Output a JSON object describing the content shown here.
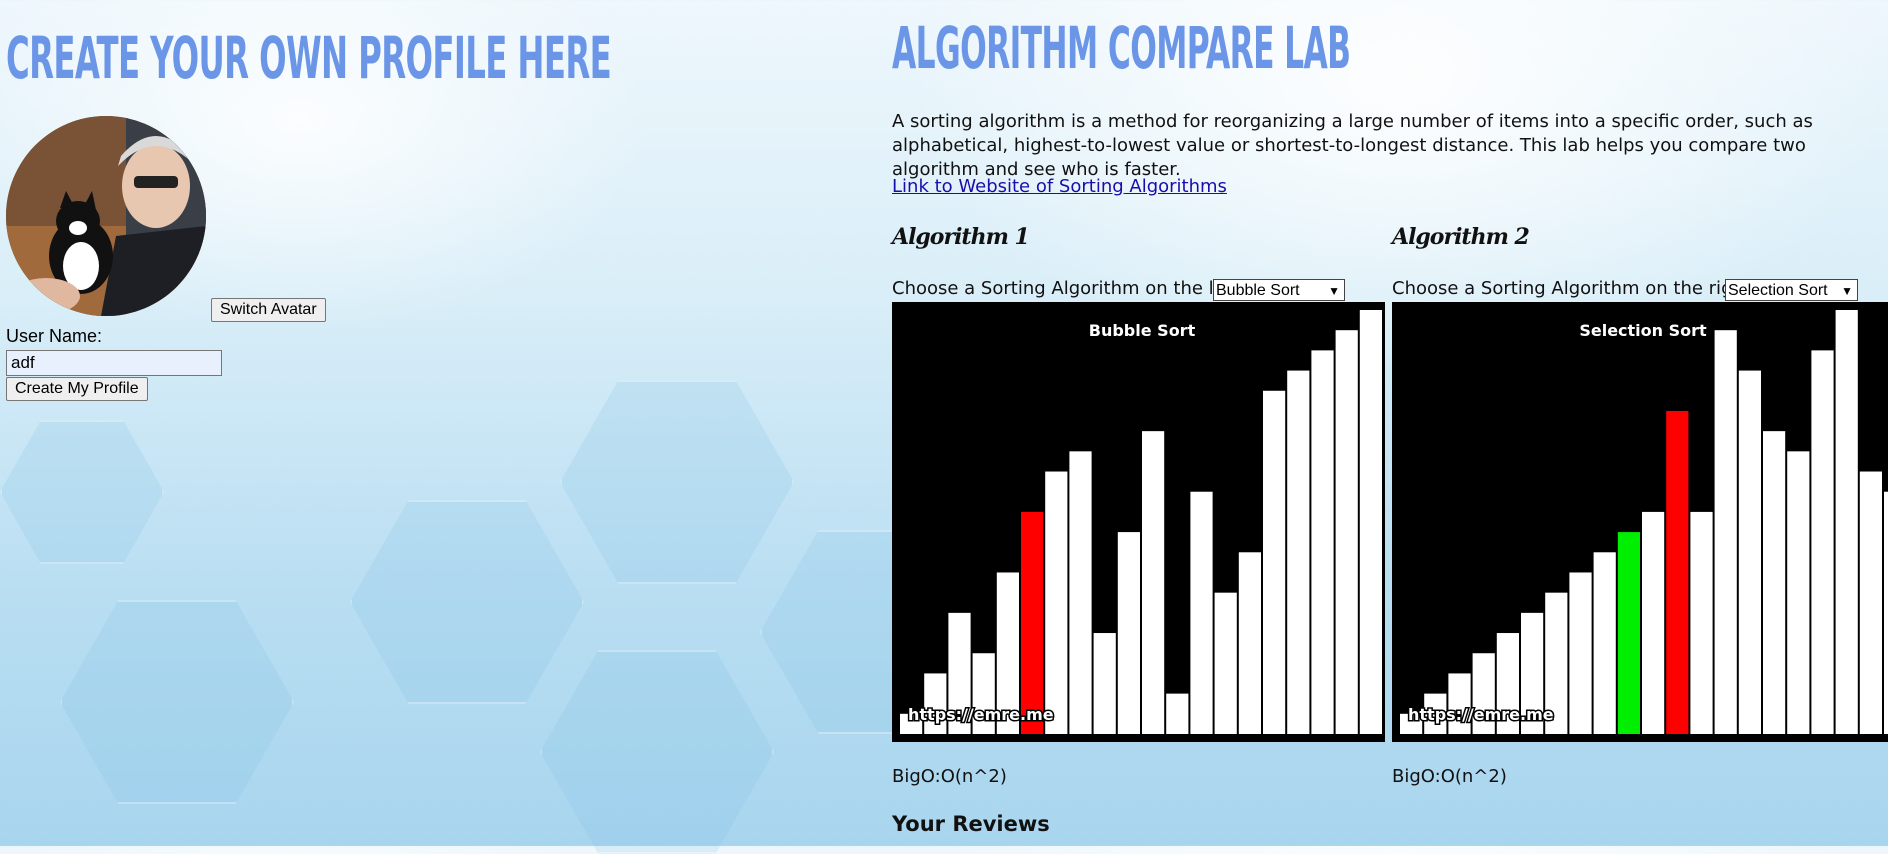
{
  "profile": {
    "title": "Create your own profile here",
    "switch_avatar_label": "Switch Avatar",
    "user_name_label": "User Name:",
    "user_name_value": "adf",
    "create_button_label": "Create My Profile"
  },
  "lab": {
    "title": "Algorithm Compare Lab",
    "description": "A sorting algorithm is a method for reorganizing a large number of items into a specific order, such as alphabetical, highest-to-lowest value or shortest-to-longest distance. This lab helps you compare two algorithm and see who is faster.",
    "link_text": "Link to Website of Sorting Algorithms",
    "reviews_heading": "Your Reviews"
  },
  "algorithms": [
    {
      "heading": "Algorithm 1",
      "choose_label": "Choose a Sorting Algorithm on the left:",
      "selected": "Bubble Sort",
      "canvas_title": "Bubble Sort",
      "watermark": "https://emre.me",
      "bigo": "BigO:O(n^2)",
      "bars": [
        1,
        3,
        6,
        4,
        8,
        11,
        13,
        14,
        5,
        10,
        15,
        2,
        12,
        7,
        9,
        17,
        18,
        19,
        20,
        21
      ],
      "highlights": {
        "5": "#ff0000"
      }
    },
    {
      "heading": "Algorithm 2",
      "choose_label": "Choose a Sorting Algorithm on the right:",
      "selected": "Selection Sort",
      "canvas_title": "Selection Sort",
      "watermark": "https://emre.me",
      "bigo": "BigO:O(n^2)",
      "bars": [
        1,
        2,
        3,
        4,
        5,
        6,
        7,
        8,
        9,
        10,
        11,
        16,
        11,
        20,
        18,
        15,
        14,
        19,
        21,
        13,
        12
      ],
      "highlights": {
        "9": "#00ee00",
        "11": "#ff0000"
      }
    }
  ],
  "colors": {
    "title": "#6b96e8",
    "bar": "#ffffff",
    "canvas_bg": "#000000"
  },
  "icons": {
    "select_chevron": "chevron-down-icon"
  }
}
